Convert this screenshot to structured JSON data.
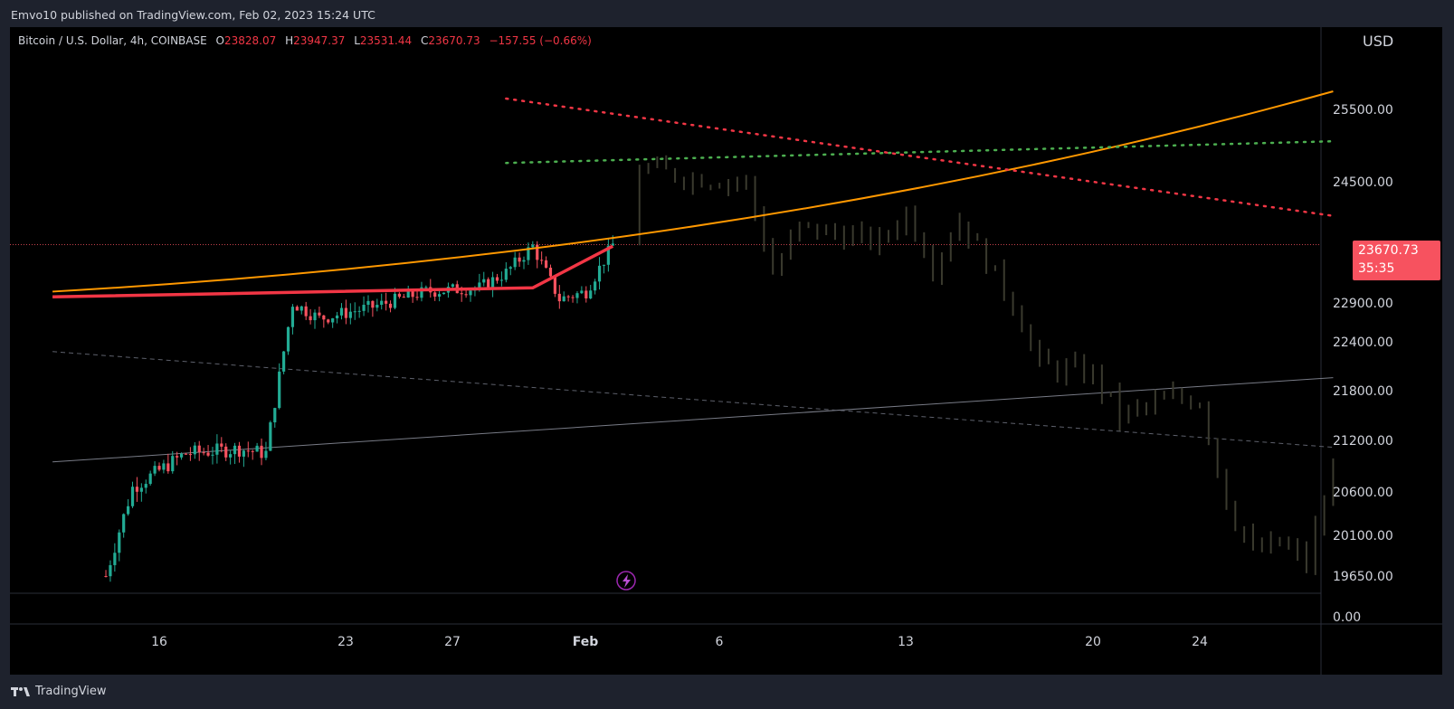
{
  "header": {
    "publish_line": "Emvo10 published on TradingView.com, Feb 02, 2023 15:24 UTC"
  },
  "legend": {
    "symbol": "Bitcoin / U.S. Dollar, 4h, COINBASE",
    "open_label": "O",
    "open": "23828.07",
    "high_label": "H",
    "high": "23947.37",
    "low_label": "L",
    "low": "23531.44",
    "close_label": "C",
    "close": "23670.73",
    "change": "−157.55 (−0.66%)"
  },
  "price_axis": {
    "currency": "USD",
    "last_price": "23670.73",
    "countdown": "35:35"
  },
  "footer": {
    "brand": "TradingView"
  },
  "colors": {
    "background": "#000000",
    "up": "#22ab94",
    "down": "#f7525f",
    "projection": "#3a3a2e",
    "orange_curve": "#ff9800",
    "red_ma": "#f23645",
    "green_dotted": "#4caf50",
    "red_dotted": "#f23645",
    "price_tag": "#f7525f"
  },
  "chart_data": {
    "type": "candlestick",
    "timeframe": "4h",
    "symbol": "BTCUSD",
    "x_ticks": [
      "16",
      "23",
      "27",
      "Feb",
      "6",
      "13",
      "20",
      "24"
    ],
    "y_ticks": [
      "25500.00",
      "24500.00",
      "23670.73",
      "22900.00",
      "22400.00",
      "21800.00",
      "21200.00",
      "20600.00",
      "20100.00",
      "19650.00",
      "0.00"
    ],
    "y_tick_values": [
      25500,
      24500,
      22900,
      22400,
      21800,
      21200,
      20600,
      20100,
      19650
    ],
    "last_price": 23670.73,
    "actual_candles_ohlc_approx": [
      {
        "date": "Jan 14",
        "price": 19650
      },
      {
        "date": "Jan 15",
        "price": 20650
      },
      {
        "date": "Jan 17",
        "price": 21050
      },
      {
        "date": "Jan 19",
        "price": 21100
      },
      {
        "date": "Jan 20",
        "price": 21050
      },
      {
        "date": "Jan 21",
        "price": 22900
      },
      {
        "date": "Jan 22",
        "price": 22700
      },
      {
        "date": "Jan 24",
        "price": 22850
      },
      {
        "date": "Jan 26",
        "price": 23050
      },
      {
        "date": "Jan 28",
        "price": 23100
      },
      {
        "date": "Jan 29",
        "price": 23300
      },
      {
        "date": "Jan 30",
        "price": 23650
      },
      {
        "date": "Jan 31",
        "price": 22950
      },
      {
        "date": "Feb 1",
        "price": 23050
      },
      {
        "date": "Feb 2",
        "price": 23670.73
      }
    ],
    "projection_path_approx": [
      {
        "date": "Feb 3",
        "price": 24700
      },
      {
        "date": "Feb 5",
        "price": 24550
      },
      {
        "date": "Feb 7",
        "price": 24500
      },
      {
        "date": "Feb 8",
        "price": 23300
      },
      {
        "date": "Feb 9",
        "price": 23900
      },
      {
        "date": "Feb 12",
        "price": 23700
      },
      {
        "date": "Feb 13",
        "price": 24100
      },
      {
        "date": "Feb 14",
        "price": 23400
      },
      {
        "date": "Feb 15",
        "price": 24000
      },
      {
        "date": "Feb 17",
        "price": 22900
      },
      {
        "date": "Feb 18",
        "price": 22100
      },
      {
        "date": "Feb 20",
        "price": 22000
      },
      {
        "date": "Feb 21",
        "price": 21500
      },
      {
        "date": "Feb 23",
        "price": 21700
      },
      {
        "date": "Feb 24",
        "price": 21700
      },
      {
        "date": "Feb 25",
        "price": 20500
      },
      {
        "date": "Feb 26",
        "price": 19900
      },
      {
        "date": "Feb 27",
        "price": 20000
      },
      {
        "date": "Feb 28",
        "price": 19800
      },
      {
        "date": "Mar 1",
        "price": 20800
      }
    ],
    "overlays": [
      {
        "kind": "curve",
        "color": "#ff9800",
        "from": {
          "date": "Jan 12",
          "price": 23050
        },
        "to": {
          "date": "Mar 1",
          "price": 25750
        }
      },
      {
        "kind": "moving-average",
        "color": "#f23645",
        "from": {
          "date": "Jan 12",
          "price": 22980
        },
        "to": {
          "date": "Feb 2",
          "price": 23650
        }
      },
      {
        "kind": "dotted-trendline",
        "color": "#4caf50",
        "from": {
          "date": "Jan 29",
          "price": 24760
        },
        "to": {
          "date": "Mar 1",
          "price": 25060
        }
      },
      {
        "kind": "dotted-trendline",
        "color": "#f23645",
        "from": {
          "date": "Jan 29",
          "price": 25650
        },
        "to": {
          "date": "Mar 1",
          "price": 24050
        }
      },
      {
        "kind": "trendline",
        "color": "#787b86",
        "from": {
          "date": "Jan 12",
          "price": 20950
        },
        "to": {
          "date": "Mar 1",
          "price": 21960
        }
      },
      {
        "kind": "dashed-trendline",
        "color": "#5d606b",
        "from": {
          "date": "Jan 12",
          "price": 22280
        },
        "to": {
          "date": "Mar 1",
          "price": 21120
        }
      }
    ]
  }
}
